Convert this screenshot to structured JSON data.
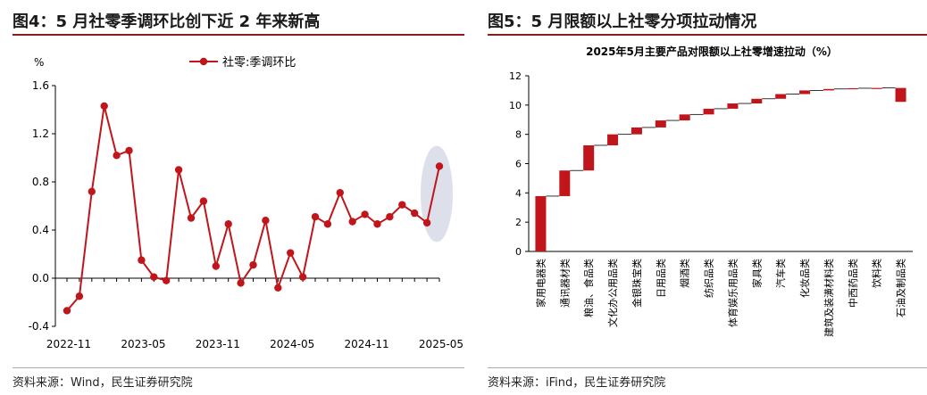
{
  "left": {
    "title": "图4：5 月社零季调环比创下近 2 年来新高",
    "source": "资料来源：Wind，民生证券研究院",
    "colors": {
      "line": "#c0161b",
      "highlight": "#d7dae6",
      "rule": "#8c1c1c"
    }
  },
  "right": {
    "title": "图5：5 月限额以上社零分项拉动情况",
    "source": "资料来源：iFind，民生证券研究院",
    "colors": {
      "bar": "#c0161b",
      "rule": "#8c1c1c"
    }
  },
  "chart_data": [
    {
      "type": "line",
      "title": "",
      "ylabel": "%",
      "ylim": [
        -0.4,
        1.6
      ],
      "yticks": [
        -0.4,
        0.0,
        0.4,
        0.8,
        1.2,
        1.6
      ],
      "ytick_labels": [
        "-0.4",
        "0.0",
        "0.4",
        "0.8",
        "1.2",
        "1.6"
      ],
      "xticks": [
        "2022-11",
        "2023-05",
        "2023-11",
        "2024-05",
        "2024-11",
        "2025-05"
      ],
      "legend_position": "top",
      "highlight": "last point (2025-05) circled",
      "series": [
        {
          "name": "社零:季调环比",
          "x": [
            "2022-11",
            "2022-12",
            "2023-01",
            "2023-02",
            "2023-03",
            "2023-04",
            "2023-05",
            "2023-06",
            "2023-07",
            "2023-08",
            "2023-09",
            "2023-10",
            "2023-11",
            "2023-12",
            "2024-01",
            "2024-02",
            "2024-03",
            "2024-04",
            "2024-05",
            "2024-06",
            "2024-07",
            "2024-08",
            "2024-09",
            "2024-10",
            "2024-11",
            "2024-12",
            "2025-01",
            "2025-02",
            "2025-03",
            "2025-04",
            "2025-05"
          ],
          "values": [
            -0.27,
            -0.15,
            0.72,
            1.43,
            1.02,
            1.06,
            0.15,
            0.01,
            -0.02,
            0.9,
            0.5,
            0.64,
            0.1,
            0.45,
            -0.04,
            0.11,
            0.48,
            -0.08,
            0.21,
            0.01,
            0.51,
            0.45,
            0.71,
            0.47,
            0.53,
            0.45,
            0.51,
            0.61,
            0.54,
            0.46,
            0.93
          ]
        }
      ]
    },
    {
      "type": "bar",
      "subtype": "waterfall",
      "title": "2025年5月主要产品对限额以上社零增速拉动（%）",
      "ylim": [
        0,
        12
      ],
      "yticks": [
        0,
        2,
        4,
        6,
        8,
        10,
        12
      ],
      "categories": [
        "家用电器类",
        "通讯器材类",
        "粮油、食品类",
        "文化办公用品类",
        "金银珠宝类",
        "日用品类",
        "烟酒类",
        "纺织品类",
        "体育娱乐用品类",
        "家具类",
        "汽车类",
        "化妆品类",
        "建筑及装潢材料类",
        "中西药品类",
        "饮料类",
        "石油及制品类"
      ],
      "values": [
        3.78,
        1.75,
        1.72,
        0.75,
        0.47,
        0.48,
        0.41,
        0.39,
        0.36,
        0.32,
        0.32,
        0.25,
        0.1,
        0.05,
        0.02,
        -0.95
      ],
      "cumulative_end": [
        3.78,
        5.53,
        7.25,
        8.0,
        8.47,
        8.95,
        9.36,
        9.75,
        10.11,
        10.43,
        10.75,
        11.0,
        11.1,
        11.15,
        11.17,
        10.22
      ]
    }
  ]
}
